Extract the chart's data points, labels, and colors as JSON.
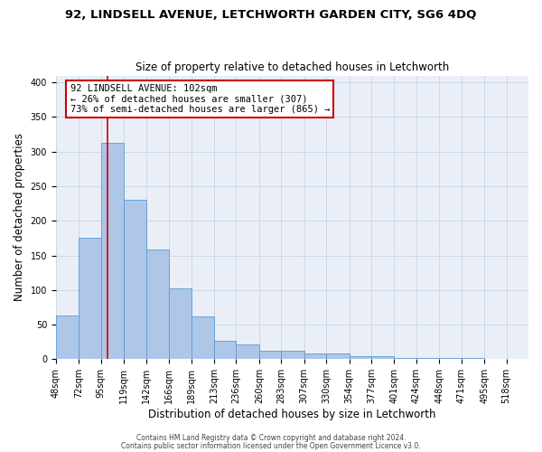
{
  "title": "92, LINDSELL AVENUE, LETCHWORTH GARDEN CITY, SG6 4DQ",
  "subtitle": "Size of property relative to detached houses in Letchworth",
  "xlabel": "Distribution of detached houses by size in Letchworth",
  "ylabel": "Number of detached properties",
  "bin_labels": [
    "48sqm",
    "72sqm",
    "95sqm",
    "119sqm",
    "142sqm",
    "166sqm",
    "189sqm",
    "213sqm",
    "236sqm",
    "260sqm",
    "283sqm",
    "307sqm",
    "330sqm",
    "354sqm",
    "377sqm",
    "401sqm",
    "424sqm",
    "448sqm",
    "471sqm",
    "495sqm",
    "518sqm"
  ],
  "bin_edges": [
    48,
    72,
    95,
    119,
    142,
    166,
    189,
    213,
    236,
    260,
    283,
    307,
    330,
    354,
    377,
    401,
    424,
    448,
    471,
    495,
    518
  ],
  "bar_heights": [
    63,
    175,
    313,
    231,
    159,
    103,
    62,
    26,
    22,
    12,
    12,
    8,
    8,
    5,
    5,
    2,
    2,
    2,
    2,
    1
  ],
  "bar_color": "#aec6e8",
  "bar_edge_color": "#5b9bd5",
  "property_line_x": 102,
  "property_line_color": "#cc0000",
  "annotation_line1": "92 LINDSELL AVENUE: 102sqm",
  "annotation_line2": "← 26% of detached houses are smaller (307)",
  "annotation_line3": "73% of semi-detached houses are larger (865) →",
  "annotation_box_color": "#ffffff",
  "annotation_box_edge_color": "#cc0000",
  "ylim": [
    0,
    410
  ],
  "yticks": [
    0,
    50,
    100,
    150,
    200,
    250,
    300,
    350,
    400
  ],
  "footer_line1": "Contains HM Land Registry data © Crown copyright and database right 2024.",
  "footer_line2": "Contains public sector information licensed under the Open Government Licence v3.0.",
  "background_color": "#ffffff",
  "axes_background_color": "#eaeff7",
  "grid_color": "#c8d4e8",
  "title_fontsize": 9.5,
  "subtitle_fontsize": 8.5,
  "tick_fontsize": 7,
  "label_fontsize": 8.5,
  "annotation_fontsize": 7.5,
  "footer_fontsize": 5.5
}
